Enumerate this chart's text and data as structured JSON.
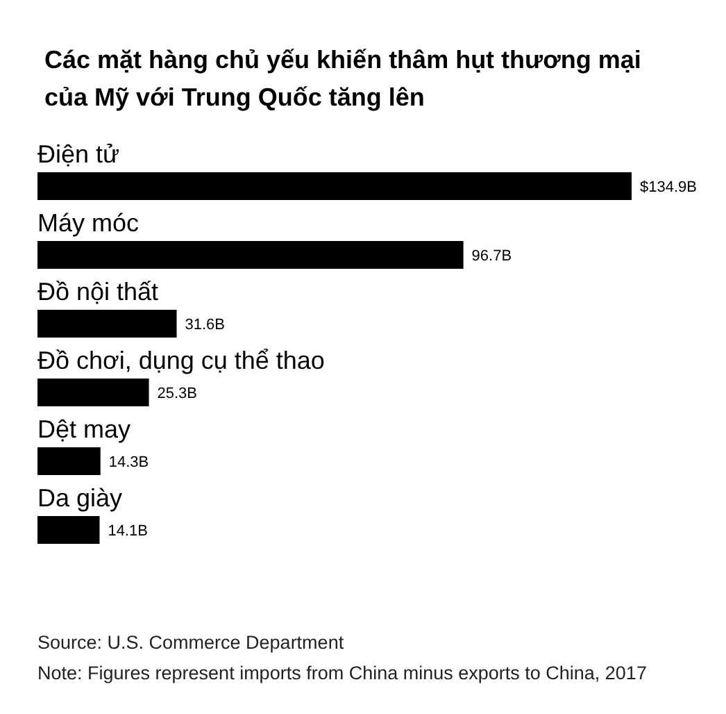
{
  "chart_data": {
    "type": "bar",
    "orientation": "horizontal",
    "title": "Các mặt hàng chủ yếu khiến thâm hụt thương mại của Mỹ với Trung Quốc tăng lên",
    "categories": [
      "Điện tử",
      "Máy móc",
      "Đồ nội thất",
      "Đồ chơi, dụng cụ thể thao",
      "Dệt may",
      "Da giày"
    ],
    "values": [
      134.9,
      96.7,
      31.6,
      25.3,
      14.3,
      14.1
    ],
    "value_labels": [
      "$134.9B",
      "96.7B",
      "31.6B",
      "25.3B",
      "14.3B",
      "14.1B"
    ],
    "color": "#000000",
    "annotations": [
      "Source: U.S. Commerce Department",
      "Note: Figures represent imports from China minus exports to China, 2017"
    ]
  }
}
